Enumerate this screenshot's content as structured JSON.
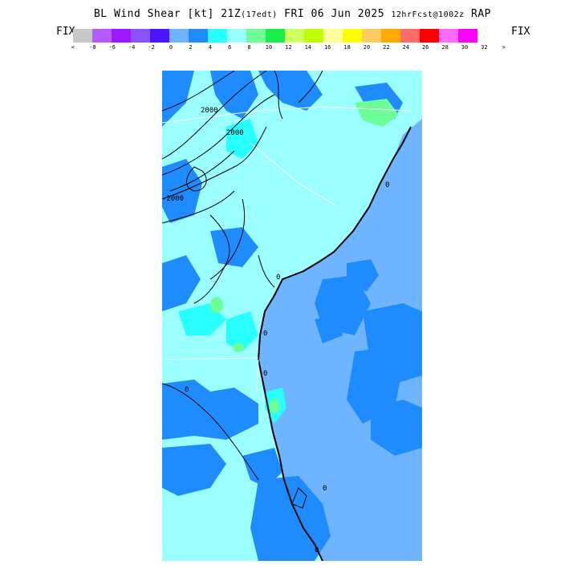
{
  "title": {
    "main": "BL Wind Shear [kt] 21Z",
    "valid_local": "(17edt)",
    "date": "FRI 06 Jun 2025",
    "forecast_info": "12hrFcst@1002z",
    "model": "RAP"
  },
  "legend": {
    "left_label": "FIX",
    "right_label": "FIX",
    "colors": [
      "#c8c8c8",
      "#b45cff",
      "#9b18ff",
      "#8b52ff",
      "#4a16ff",
      "#6eb4ff",
      "#1e8cff",
      "#28ffff",
      "#9cffff",
      "#6cff98",
      "#18ee4c",
      "#d0ff60",
      "#c0ff00",
      "#ffff9c",
      "#ffff00",
      "#ffcc60",
      "#ffaa00",
      "#ff6a6a",
      "#ff0000",
      "#ff6aff",
      "#ff00ff"
    ],
    "ticks": [
      "<",
      "-8",
      "-6",
      "-4",
      "-2",
      "0",
      "2",
      "4",
      "6",
      "8",
      "10",
      "12",
      "14",
      "16",
      "18",
      "20",
      "22",
      "24",
      "26",
      "28",
      "30",
      "32",
      ">"
    ]
  },
  "map": {
    "contour_labels": [
      "2000",
      "2000",
      "-2000",
      "0",
      "0",
      "0",
      "0",
      "0",
      "0",
      "0"
    ],
    "fill_colors": {
      "ocean": "#6eb4ff",
      "mid": "#1e8cff",
      "low": "#9cffff",
      "cyan": "#28ffff",
      "green": "#6cff98"
    }
  }
}
